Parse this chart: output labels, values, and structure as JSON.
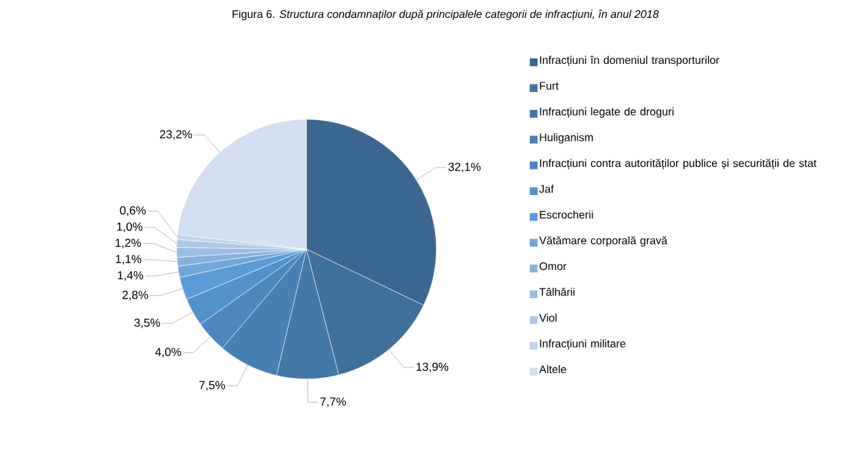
{
  "chart_data": {
    "type": "pie",
    "title": "Figura 6. *Structura condamnaților după principalele categorii de infracțiuni, în anul 2018*",
    "categories": [
      "Infracțiuni în domeniul transporturilor",
      "Furt",
      "Infracțiuni legate de droguri",
      "Huliganism",
      "Infracțiuni contra autorităților publice și securității de stat",
      "Jaf",
      "Escrocherii",
      "Vătămare corporală gravă",
      "Omor",
      "Tâlhării",
      "Viol",
      "Infracțiuni militare",
      "Altele"
    ],
    "values": [
      32.1,
      13.9,
      7.7,
      7.5,
      4.0,
      3.5,
      2.8,
      1.4,
      1.1,
      1.2,
      1.0,
      0.6,
      23.2
    ],
    "value_labels": [
      "32,1%",
      "13,9%",
      "7,7%",
      "7,5%",
      "4,0%",
      "3,5%",
      "2,8%",
      "1,4%",
      "1,1%",
      "1,2%",
      "1,0%",
      "0,6%",
      "23,2%"
    ],
    "colors": [
      "#3b6790",
      "#41709b",
      "#4577a7",
      "#497fb2",
      "#4e87be",
      "#5392cb",
      "#5b9bd5",
      "#72a6d9",
      "#89b1dd",
      "#9cbde3",
      "#afc8e7",
      "#c2d4ec",
      "#d3dff0"
    ],
    "legend": "right"
  }
}
